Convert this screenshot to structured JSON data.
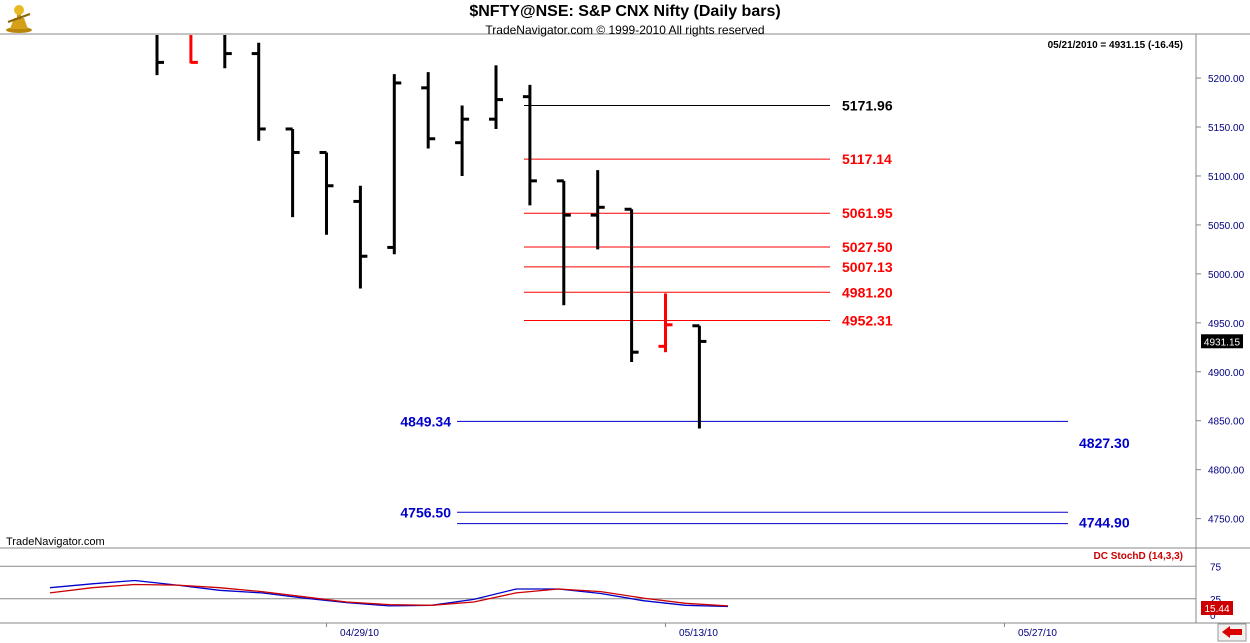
{
  "header": {
    "title": "$NFTY@NSE:  S&P CNX Nifty  (Daily bars)",
    "copyright": "TradeNavigator.com © 1999-2010 All rights reserved",
    "last_value": "05/21/2010 = 4931.15 (-16.45)",
    "watermark": "TradeNavigator.com",
    "price_badge": "4931.15"
  },
  "colors": {
    "bar": "#000000",
    "down_bar": "#ff0000",
    "up_marker": "#00cc00",
    "resistance": "#ff0000",
    "resistance_top": "#000000",
    "support": "#0000cc",
    "axis_text": "#000080",
    "stoch_k": "#0000cc",
    "stoch_d": "#cc0000"
  },
  "chart_data": [
    {
      "type": "ohlc",
      "title": "$NFTY@NSE:  S&P CNX Nifty  (Daily bars)",
      "ylim": [
        4720,
        5245
      ],
      "yticks": [
        4750,
        4800,
        4850,
        4900,
        4950,
        5000,
        5050,
        5100,
        5150,
        5200
      ],
      "ytick_labels": [
        "4750.00",
        "4800.00",
        "4850.00",
        "4900.00",
        "4950.00",
        "5000.00",
        "5050.00",
        "5100.00",
        "5150.00",
        "5200.00"
      ],
      "xtick_labels": [
        {
          "index": 5,
          "label": "04/29/10"
        },
        {
          "index": 15,
          "label": "05/13/10"
        },
        {
          "index": 25,
          "label": "05/27/10"
        }
      ],
      "bars": [
        {
          "open": 5270,
          "high": 5280,
          "low": 5203,
          "close": 5216,
          "color": "black"
        },
        {
          "open": 5280,
          "high": 5285,
          "low": 5215,
          "close": 5216,
          "color": "red"
        },
        {
          "open": 5255,
          "high": 5275,
          "low": 5210,
          "close": 5225,
          "color": "black"
        },
        {
          "open": 5225,
          "high": 5236,
          "low": 5136,
          "close": 5148,
          "color": "black"
        },
        {
          "open": 5148,
          "high": 5148,
          "low": 5058,
          "close": 5124,
          "color": "black"
        },
        {
          "open": 5124,
          "high": 5124,
          "low": 5040,
          "close": 5090,
          "color": "black"
        },
        {
          "open": 5074,
          "high": 5090,
          "low": 4985,
          "close": 5018,
          "color": "black"
        },
        {
          "open": 5027,
          "high": 5204,
          "low": 5020,
          "close": 5195,
          "color": "black"
        },
        {
          "open": 5190,
          "high": 5206,
          "low": 5128,
          "close": 5138,
          "color": "black"
        },
        {
          "open": 5134,
          "high": 5172,
          "low": 5100,
          "close": 5158,
          "color": "black"
        },
        {
          "open": 5158,
          "high": 5213,
          "low": 5148,
          "close": 5178,
          "color": "black"
        },
        {
          "open": 5181,
          "high": 5193,
          "low": 5070,
          "close": 5095,
          "color": "black"
        },
        {
          "open": 5095,
          "high": 5095,
          "low": 4968,
          "close": 5060,
          "color": "black"
        },
        {
          "open": 5060,
          "high": 5106,
          "low": 5025,
          "close": 5068,
          "color": "black"
        },
        {
          "open": 5066,
          "high": 5066,
          "low": 4910,
          "close": 4920,
          "color": "black"
        },
        {
          "open": 4926,
          "high": 4980,
          "low": 4920,
          "close": 4948,
          "color": "red"
        },
        {
          "open": 4947,
          "high": 4947,
          "low": 4842,
          "close": 4931,
          "color": "black"
        }
      ],
      "levels": [
        {
          "label": "5171.96",
          "value": 5171.96,
          "kind": "resistance-top"
        },
        {
          "label": "5117.14",
          "value": 5117.14,
          "kind": "resistance"
        },
        {
          "label": "5061.95",
          "value": 5061.95,
          "kind": "resistance"
        },
        {
          "label": "5027.50",
          "value": 5027.5,
          "kind": "resistance"
        },
        {
          "label": "5007.13",
          "value": 5007.13,
          "kind": "resistance"
        },
        {
          "label": "4981.20",
          "value": 4981.2,
          "kind": "resistance"
        },
        {
          "label": "4952.31",
          "value": 4952.31,
          "kind": "resistance"
        },
        {
          "label": "4849.34",
          "value": 4849.34,
          "kind": "support"
        },
        {
          "label": "4756.50",
          "value": 4756.5,
          "kind": "support"
        },
        {
          "label": "4744.90",
          "value": 4744.9,
          "kind": "support"
        }
      ],
      "side_labels": [
        {
          "label": "4827.30",
          "value": 4827.3
        }
      ]
    },
    {
      "type": "line",
      "title": "DC StochD (14,3,3)",
      "ylim": [
        0,
        100
      ],
      "yticks": [
        0,
        25,
        75
      ],
      "ytick_labels": [
        "0",
        "25",
        "75"
      ],
      "last_value": "15.44",
      "series": [
        {
          "key": "k",
          "values": [
            42,
            48,
            53,
            46,
            38,
            34,
            26,
            19,
            14,
            15,
            24,
            40,
            40,
            33,
            22,
            15,
            13
          ]
        },
        {
          "key": "d",
          "values": [
            34,
            42,
            47,
            46,
            42,
            36,
            28,
            20,
            16,
            15,
            20,
            34,
            40,
            36,
            26,
            18,
            14
          ]
        }
      ]
    }
  ]
}
